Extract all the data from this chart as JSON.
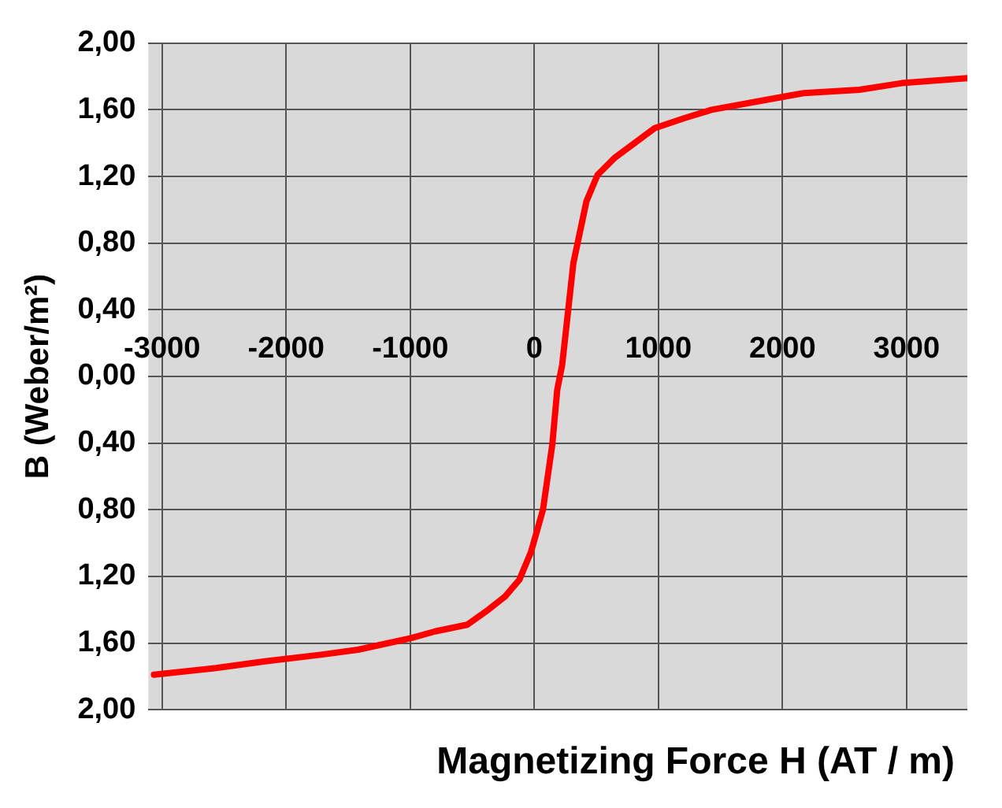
{
  "chart_data": {
    "type": "line",
    "xlabel": "Magnetizing Force H (AT / m)",
    "ylabel": "B (Weber/m²)",
    "x": [
      -3065,
      -2565,
      -2170,
      -1720,
      -1420,
      -990,
      -800,
      -540,
      -370,
      -235,
      -120,
      -25,
      70,
      145,
      185,
      225,
      315,
      420,
      510,
      645,
      970,
      1210,
      1430,
      1870,
      2170,
      2620,
      2960,
      3490
    ],
    "series": [
      {
        "color": "#ff0000",
        "values": [
          -1.79,
          -1.75,
          -1.71,
          -1.67,
          -1.64,
          -1.57,
          -1.53,
          -1.49,
          -1.4,
          -1.32,
          -1.22,
          -1.05,
          -0.8,
          -0.41,
          -0.08,
          0.07,
          0.68,
          1.05,
          1.21,
          1.31,
          1.49,
          1.55,
          1.6,
          1.66,
          1.7,
          1.72,
          1.76,
          1.79
        ]
      }
    ],
    "xlim": [
      -3110,
      3490
    ],
    "xticks": [
      -3000,
      -2000,
      -1000,
      0,
      1000,
      2000,
      3000
    ],
    "ylim": [
      -2,
      2
    ],
    "yticks": [
      {
        "value": 2,
        "label": "2,00"
      },
      {
        "value": 1.6,
        "label": "1,60"
      },
      {
        "value": 1.2,
        "label": "1,20"
      },
      {
        "value": 0.8,
        "label": "0,80"
      },
      {
        "value": 0.4,
        "label": "0,40"
      },
      {
        "value": 0,
        "label": "0,00"
      },
      {
        "value": -0.4,
        "label": "0,40"
      },
      {
        "value": -0.8,
        "label": "0,80"
      },
      {
        "value": -1.2,
        "label": "1,20"
      },
      {
        "value": -1.6,
        "label": "1,60"
      },
      {
        "value": -2,
        "label": "2,00"
      }
    ],
    "grid": true,
    "legend": false,
    "marker": "none",
    "line_style": "solid"
  }
}
